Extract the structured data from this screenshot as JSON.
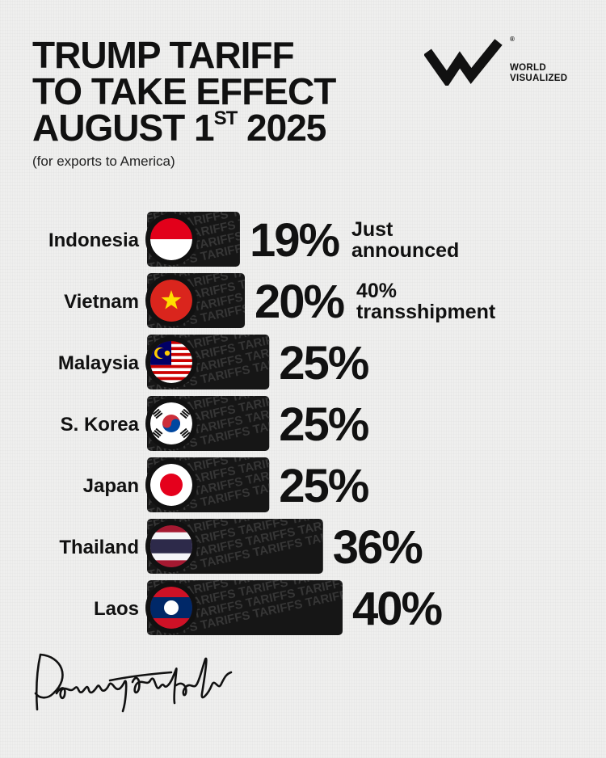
{
  "title": {
    "line1": "TRUMP TARIFF",
    "line2": "TO TAKE EFFECT",
    "line3_main": "AUGUST 1",
    "line3_sup": "ST",
    "line3_year": " 2025"
  },
  "subtitle": "(for exports to America)",
  "logo": {
    "line1": "WORLD",
    "line2": "VISUALIZED",
    "reg": "®"
  },
  "bar_texture_text": "TARIFFS",
  "colors": {
    "bar": "#161616",
    "text": "#111111",
    "background": "#efefee"
  },
  "chart_data": {
    "type": "bar",
    "orientation": "horizontal",
    "categories": [
      "Indonesia",
      "Vietnam",
      "Malaysia",
      "S. Korea",
      "Japan",
      "Thailand",
      "Laos"
    ],
    "values": [
      19,
      20,
      25,
      25,
      25,
      36,
      40
    ],
    "value_labels": [
      "19%",
      "20%",
      "25%",
      "25%",
      "25%",
      "36%",
      "40%"
    ],
    "notes": [
      [
        "Just",
        "announced"
      ],
      [
        "40%",
        "transshipment"
      ],
      [],
      [],
      [],
      [],
      []
    ],
    "flags": [
      "indonesia-flag",
      "vietnam-flag",
      "malaysia-flag",
      "south-korea-flag",
      "japan-flag",
      "thailand-flag",
      "laos-flag"
    ],
    "unit": "%"
  }
}
